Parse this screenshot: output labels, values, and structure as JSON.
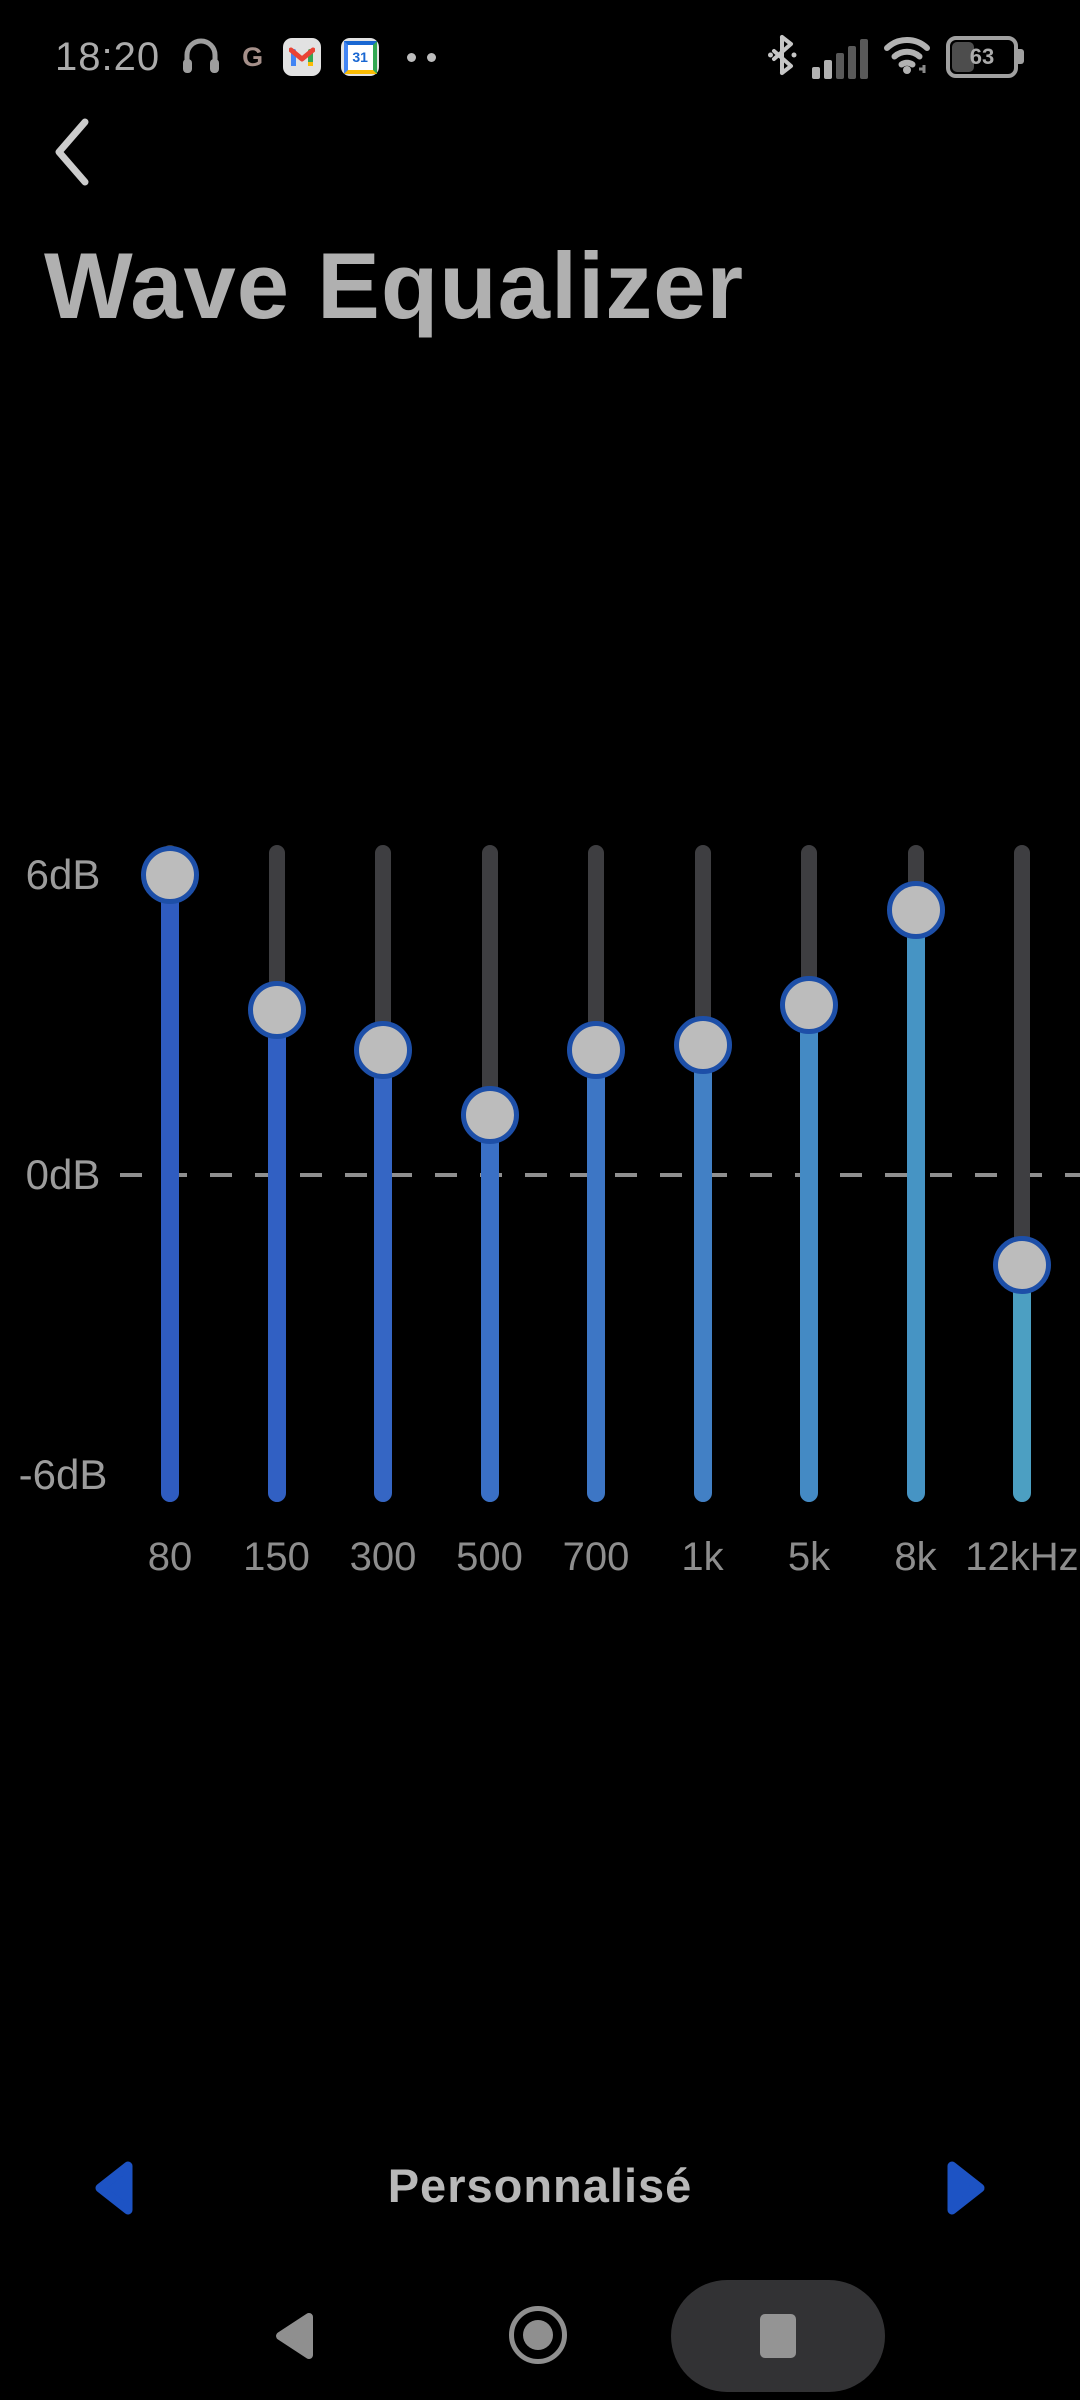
{
  "status_bar": {
    "time": "18:20",
    "left_icons": [
      "headset-icon",
      "google-g-icon",
      "gmail-icon",
      "calendar-icon",
      "more-notifications-dots"
    ],
    "google_g": "G",
    "calendar_day": "31",
    "signal": {
      "bars_total": 5,
      "bars_active": 2
    },
    "battery_percent": "63"
  },
  "header": {
    "back_label": "back",
    "title": "Wave Equalizer"
  },
  "chart_data": {
    "type": "equalizer-sliders",
    "title": "Wave Equalizer",
    "categories": [
      "80",
      "150",
      "300",
      "500",
      "700",
      "1k",
      "5k",
      "8k",
      "12kHz"
    ],
    "values_db": [
      6.0,
      3.3,
      2.5,
      1.2,
      2.5,
      2.6,
      3.4,
      5.3,
      -1.8
    ],
    "ylim": [
      -6.6,
      6.6
    ],
    "yticks": [
      "6dB",
      "0dB",
      "-6dB"
    ],
    "zero_line_style": "dashed",
    "slider_fill_colors": [
      "#2f5cc0",
      "#3160c3",
      "#3566c4",
      "#3a70c6",
      "#3d76c5",
      "#4280c5",
      "#448ac4",
      "#4694c4",
      "#4c9fc2"
    ],
    "inactive_track_color": "#3e3e41",
    "handle_fill": "#bcbcbc",
    "handle_ring": "#1d4fa8",
    "tick_color": "#9c9c9c",
    "label_color": "#8d8d8d"
  },
  "preset": {
    "label": "Personnalisé",
    "prev_label": "previous preset",
    "next_label": "next preset",
    "arrow_color": "#1d53c4"
  },
  "nav_bar": {
    "back": "back",
    "home": "home",
    "stop_recording": "stop"
  },
  "colors": {
    "background": "#000000",
    "title_text": "#b0b0b0",
    "status_text": "#ababab"
  }
}
